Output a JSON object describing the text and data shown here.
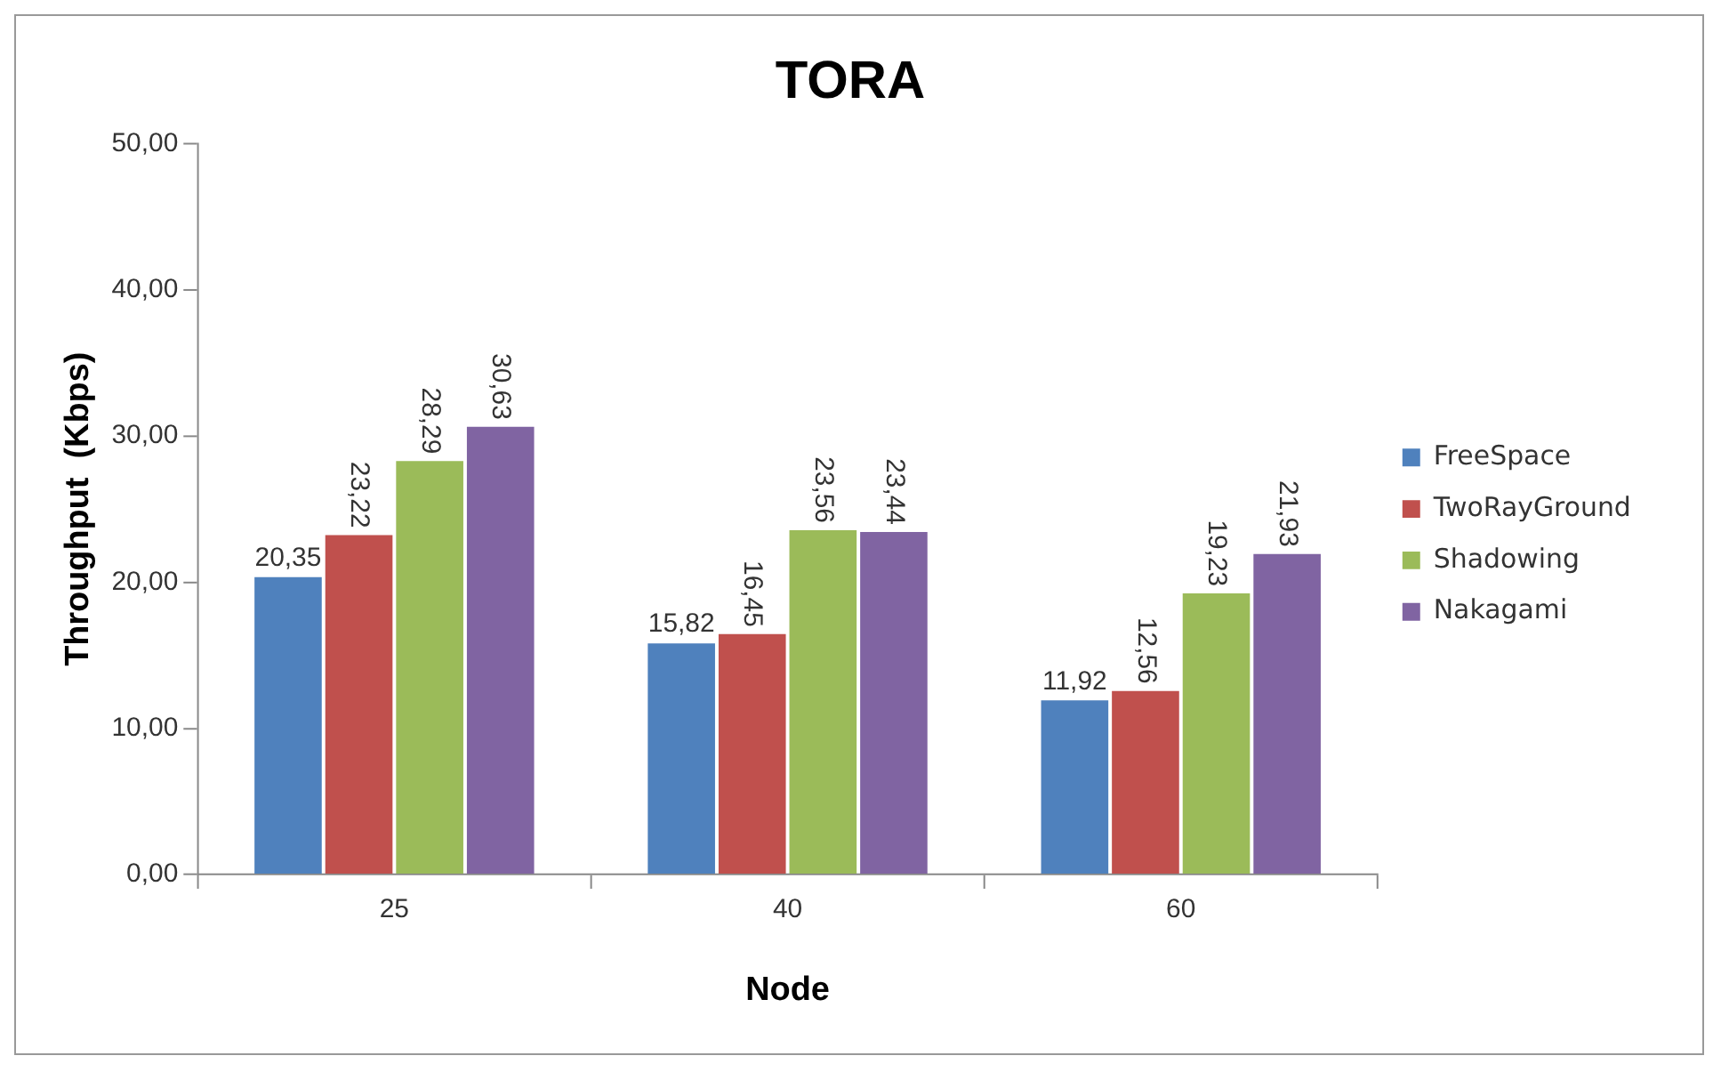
{
  "chart_data": {
    "type": "bar",
    "title": "TORA",
    "xlabel": "Node",
    "ylabel": "Throughput  (Kbps)",
    "categories": [
      "25",
      "40",
      "60"
    ],
    "series": [
      {
        "name": "FreeSpace",
        "color": "#4f81bd",
        "values": [
          20.35,
          15.82,
          11.92
        ],
        "value_labels": [
          "20,35",
          "15,82",
          "11,92"
        ]
      },
      {
        "name": "TwoRayGround",
        "color": "#c0504d",
        "values": [
          23.22,
          16.45,
          12.56
        ],
        "value_labels": [
          "23,22",
          "16,45",
          "12,56"
        ]
      },
      {
        "name": "Shadowing",
        "color": "#9bbb59",
        "values": [
          28.29,
          23.56,
          19.23
        ],
        "value_labels": [
          "28,29",
          "23,56",
          "19,23"
        ]
      },
      {
        "name": "Nakagami",
        "color": "#8064a2",
        "values": [
          30.63,
          23.44,
          21.93
        ],
        "value_labels": [
          "30,63",
          "23,44",
          "21,93"
        ]
      }
    ],
    "ylim": [
      0,
      50
    ],
    "yticks": [
      {
        "value": 0,
        "label": "0,00"
      },
      {
        "value": 10,
        "label": "10,00"
      },
      {
        "value": 20,
        "label": "20,00"
      },
      {
        "value": 30,
        "label": "30,00"
      },
      {
        "value": 40,
        "label": "40,00"
      },
      {
        "value": 50,
        "label": "50,00"
      }
    ],
    "grid": false,
    "legend": "right"
  }
}
